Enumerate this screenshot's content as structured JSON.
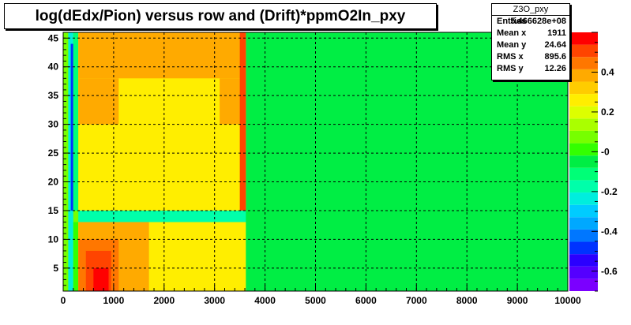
{
  "chart_data": {
    "type": "heatmap",
    "title": "log(dEdx/Pion) versus row and (Drift)*ppmO2In_pxy",
    "xlim": [
      0,
      10000
    ],
    "ylim": [
      1,
      46
    ],
    "x_ticks": [
      "0",
      "1000",
      "2000",
      "3000",
      "4000",
      "5000",
      "6000",
      "7000",
      "8000",
      "9000",
      "10000"
    ],
    "y_ticks": [
      "5",
      "10",
      "15",
      "20",
      "25",
      "30",
      "35",
      "40",
      "45"
    ],
    "z_ticks": [
      "0.4",
      "0.2",
      "-0",
      "-0.2",
      "-0.4",
      "-0.6"
    ],
    "grid": true,
    "palette": [
      "#7b00ff",
      "#5400ff",
      "#2b00ff",
      "#0033ff",
      "#0077ff",
      "#00a8ff",
      "#00ccff",
      "#00eedd",
      "#00ffaa",
      "#00ff77",
      "#00ee44",
      "#33ff00",
      "#77ff00",
      "#aaff00",
      "#ddff00",
      "#ffee00",
      "#ffcc00",
      "#ffaa00",
      "#ff7700",
      "#ff4400",
      "#ff0000"
    ],
    "background_level": 10,
    "regions": [
      {
        "x": [
          0,
          350
        ],
        "y": [
          1,
          46
        ],
        "level": 12
      },
      {
        "x": [
          100,
          200
        ],
        "y": [
          1,
          46
        ],
        "level": 7
      },
      {
        "x": [
          150,
          200
        ],
        "y": [
          15,
          44
        ],
        "level": 3
      },
      {
        "x": [
          200,
          300
        ],
        "y": [
          15,
          46
        ],
        "level": 9
      },
      {
        "x": [
          200,
          300
        ],
        "y": [
          1,
          13
        ],
        "level": 11
      },
      {
        "x": [
          300,
          3620
        ],
        "y": [
          15,
          46
        ],
        "level": 15
      },
      {
        "x": [
          300,
          3620
        ],
        "y": [
          38,
          46
        ],
        "level": 17
      },
      {
        "x": [
          300,
          1100
        ],
        "y": [
          30,
          38
        ],
        "level": 17
      },
      {
        "x": [
          3100,
          3620
        ],
        "y": [
          30,
          38
        ],
        "level": 17
      },
      {
        "x": [
          3500,
          3620
        ],
        "y": [
          15,
          46
        ],
        "level": 19
      },
      {
        "x": [
          300,
          3620
        ],
        "y": [
          13,
          15
        ],
        "level": 8
      },
      {
        "x": [
          300,
          3620
        ],
        "y": [
          1,
          13
        ],
        "level": 15
      },
      {
        "x": [
          300,
          1700
        ],
        "y": [
          1,
          13
        ],
        "level": 17
      },
      {
        "x": [
          300,
          1100
        ],
        "y": [
          1,
          10
        ],
        "level": 18
      },
      {
        "x": [
          450,
          950
        ],
        "y": [
          1,
          8
        ],
        "level": 19
      },
      {
        "x": [
          600,
          900
        ],
        "y": [
          1,
          5
        ],
        "level": 20
      }
    ],
    "stats": {
      "name": "Z3O_pxy",
      "entries": "5.466628e+08",
      "mean_x": "1911",
      "mean_y": "24.64",
      "rms_x": "895.6",
      "rms_y": "12.26"
    }
  },
  "stats_labels": {
    "entries": "Entries",
    "mean_x": "Mean x",
    "mean_y": "Mean y",
    "rms_x": "RMS x",
    "rms_y": "RMS y"
  }
}
